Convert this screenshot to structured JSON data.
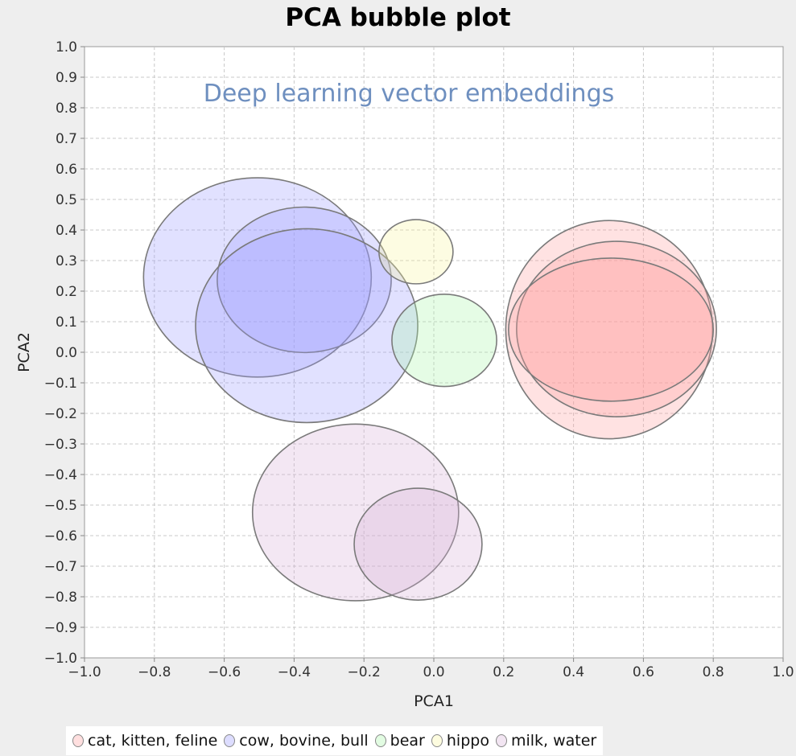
{
  "chart_data": {
    "type": "bubble",
    "title": "PCA bubble plot",
    "annotation": "Deep learning vector embeddings",
    "xlabel": "PCA1",
    "ylabel": "PCA2",
    "xlim": [
      -1.0,
      1.0
    ],
    "ylim": [
      -1.0,
      1.0
    ],
    "xticks": [
      "−1.0",
      "−0.8",
      "−0.6",
      "−0.4",
      "−0.2",
      "0.0",
      "0.2",
      "0.4",
      "0.6",
      "0.8",
      "1.0"
    ],
    "yticks": [
      "1.0",
      "0.9",
      "0.8",
      "0.7",
      "0.6",
      "0.5",
      "0.4",
      "0.3",
      "0.2",
      "0.1",
      "0.0",
      "−0.1",
      "−0.2",
      "−0.3",
      "−0.4",
      "−0.5",
      "−0.6",
      "−0.7",
      "−0.8",
      "−0.9",
      "−1.0"
    ],
    "grid": true,
    "legend_position": "bottom",
    "series": [
      {
        "name": "cat, kitten, feline",
        "color": "#ffa0a0",
        "points": [
          {
            "x": 0.502,
            "y": 0.074,
            "rx": 0.296,
            "ry": 0.357
          },
          {
            "x": 0.523,
            "y": 0.076,
            "rx": 0.286,
            "ry": 0.287
          },
          {
            "x": 0.507,
            "y": 0.074,
            "rx": 0.293,
            "ry": 0.234
          }
        ]
      },
      {
        "name": "cow, bovine, bull",
        "color": "#9a9aff",
        "points": [
          {
            "x": -0.505,
            "y": 0.245,
            "rx": 0.326,
            "ry": 0.326
          },
          {
            "x": -0.371,
            "y": 0.237,
            "rx": 0.249,
            "ry": 0.238
          },
          {
            "x": -0.364,
            "y": 0.087,
            "rx": 0.318,
            "ry": 0.317
          }
        ]
      },
      {
        "name": "bear",
        "color": "#a8f5a8",
        "points": [
          {
            "x": 0.03,
            "y": 0.039,
            "rx": 0.15,
            "ry": 0.151
          }
        ]
      },
      {
        "name": "hippo",
        "color": "#f8f5a0",
        "points": [
          {
            "x": -0.051,
            "y": 0.329,
            "rx": 0.106,
            "ry": 0.105
          }
        ]
      },
      {
        "name": "milk, water",
        "color": "#d8b0d8",
        "points": [
          {
            "x": -0.224,
            "y": -0.524,
            "rx": 0.295,
            "ry": 0.289
          },
          {
            "x": -0.045,
            "y": -0.628,
            "rx": 0.183,
            "ry": 0.183
          }
        ]
      }
    ]
  }
}
